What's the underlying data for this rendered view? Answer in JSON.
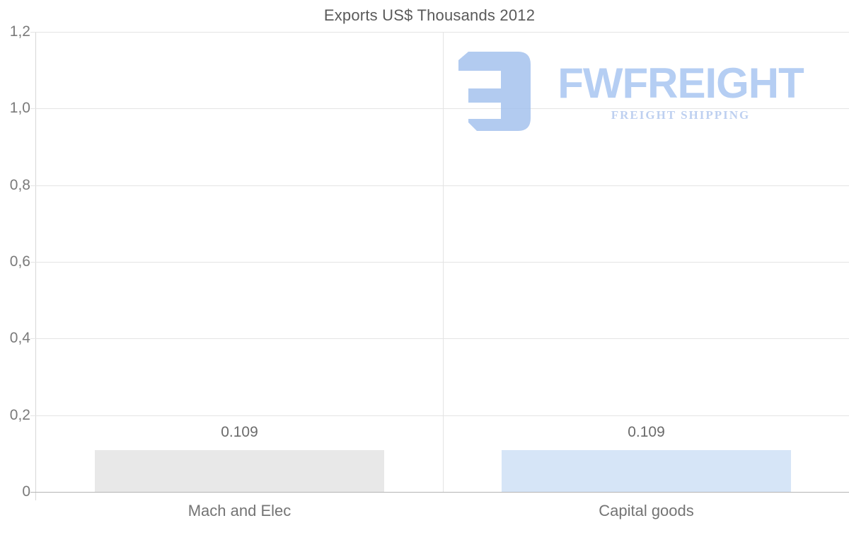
{
  "brand": {
    "name": "FWFREIGHT",
    "tagline": "FREIGHT SHIPPING",
    "logo_color": "#a5c2ee",
    "name_color": "#a9c6f2",
    "tagline_color": "#b3c8ee"
  },
  "chart_data": {
    "type": "bar",
    "title": "Exports US$ Thousands 2012",
    "categories": [
      "Mach and Elec",
      "Capital goods"
    ],
    "values": [
      0.109,
      0.109
    ],
    "value_labels": [
      "0.109",
      "0.109"
    ],
    "bar_colors": [
      "#e8e8e8",
      "#d6e5f7"
    ],
    "xlabel": "",
    "ylabel": "",
    "ylim": [
      0,
      1.2
    ],
    "y_ticks": [
      0,
      0.2,
      0.4,
      0.6,
      0.8,
      1.0,
      1.2
    ],
    "y_tick_labels": [
      "0",
      "0,2",
      "0,4",
      "0,6",
      "0,8",
      "1,0",
      "1,2"
    ],
    "grid": true,
    "legend_position": "none",
    "title_color": "#5a5a5a",
    "axis_label_color": "#7a7a7a",
    "gridline_color": "#e4e4e4",
    "baseline_color": "#b4b4b4"
  }
}
